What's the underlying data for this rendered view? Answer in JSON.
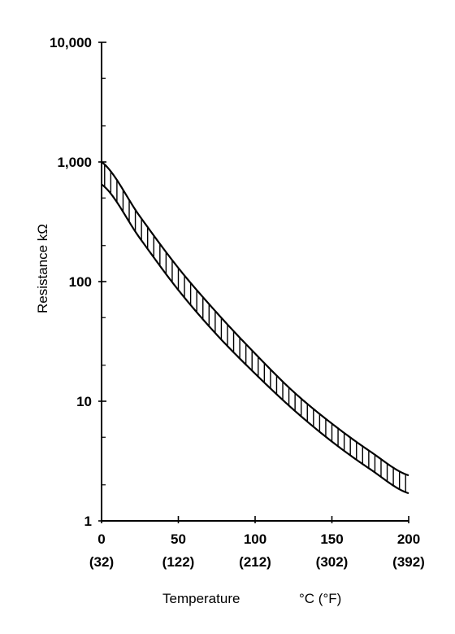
{
  "chart_data": {
    "type": "area",
    "title": "",
    "xlabel": "Temperature",
    "xlabel_unit": "°C  (°F)",
    "ylabel": "Resistance kΩ",
    "y_scale": "log",
    "ylim": [
      1,
      10000
    ],
    "xlim": [
      0,
      200
    ],
    "grid": false,
    "y_ticks": [
      {
        "value": 1,
        "label": "1"
      },
      {
        "value": 10,
        "label": "10"
      },
      {
        "value": 100,
        "label": "100"
      },
      {
        "value": 1000,
        "label": "1,000"
      },
      {
        "value": 10000,
        "label": "10,000"
      }
    ],
    "x_ticks": [
      {
        "value": 0,
        "label": "0",
        "sublabel": "(32)"
      },
      {
        "value": 50,
        "label": "50",
        "sublabel": "(122)"
      },
      {
        "value": 100,
        "label": "100",
        "sublabel": "(212)"
      },
      {
        "value": 150,
        "label": "150",
        "sublabel": "(302)"
      },
      {
        "value": 200,
        "label": "200",
        "sublabel": "(392)"
      }
    ],
    "x": [
      0,
      25,
      50,
      75,
      100,
      125,
      150,
      175,
      200
    ],
    "series": [
      {
        "values": [
          1000,
          350,
          130,
          55,
          25,
          12,
          6.5,
          3.8,
          2.4
        ]
      },
      {
        "values": [
          650,
          230,
          85,
          36,
          17,
          8.5,
          4.6,
          2.7,
          1.7
        ]
      }
    ]
  }
}
